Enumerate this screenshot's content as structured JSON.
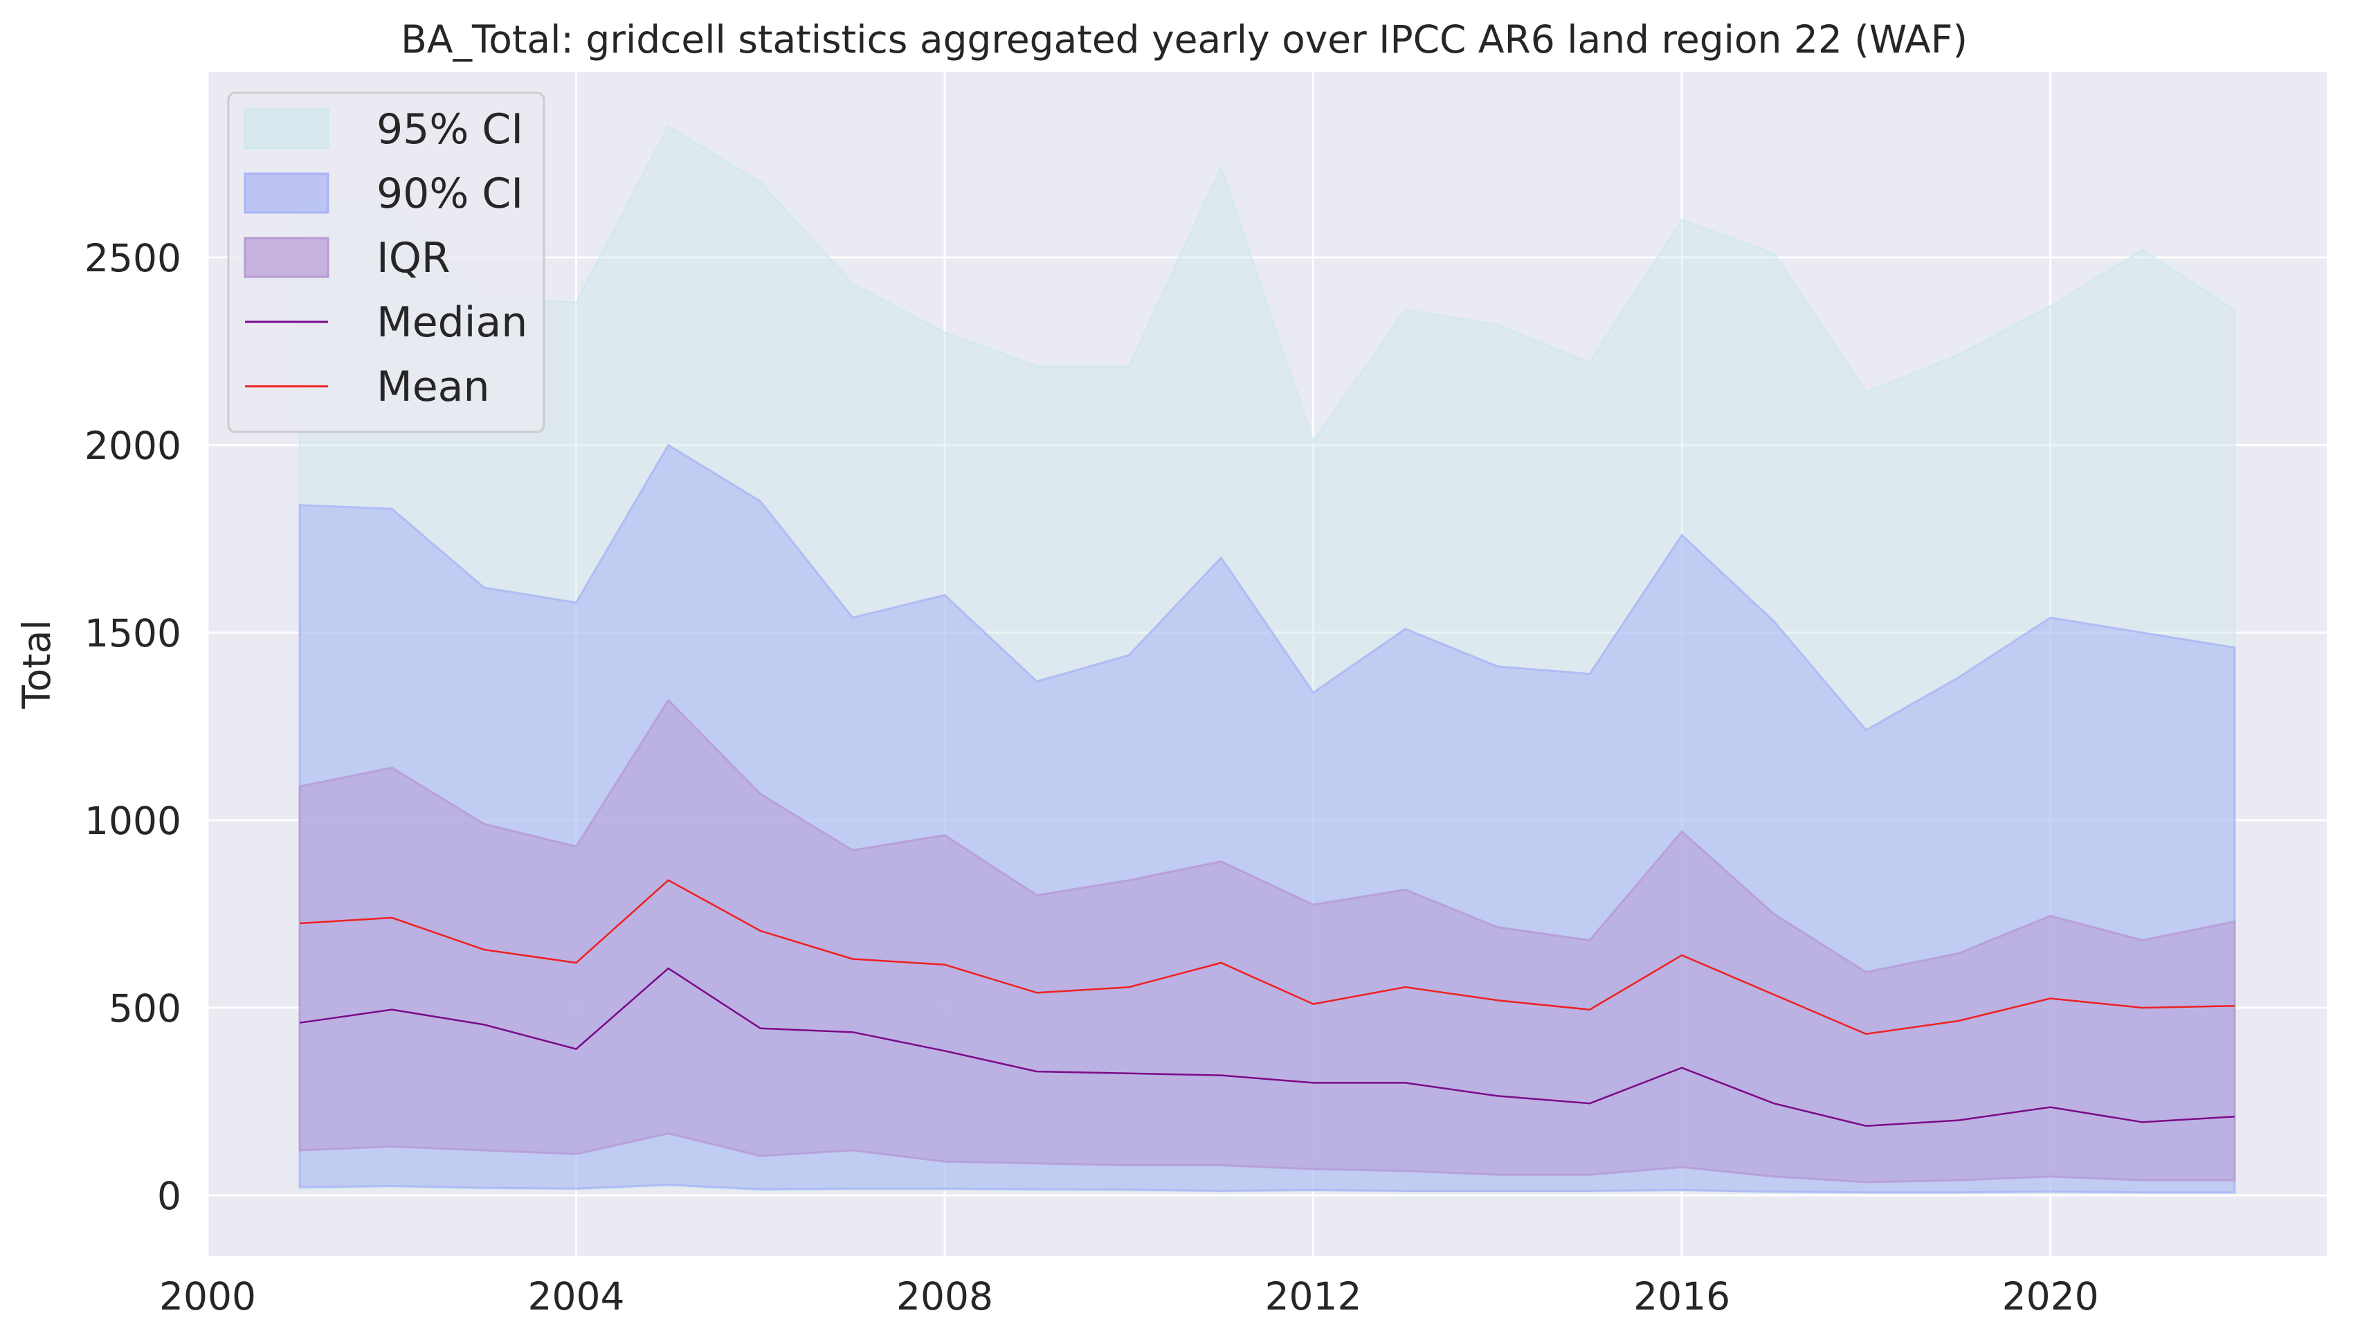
{
  "chart_data": {
    "type": "area",
    "title": "BA_Total: gridcell statistics aggregated yearly over IPCC AR6 land region 22 (WAF)",
    "xlabel": "",
    "ylabel": "Total",
    "xlim": [
      2000,
      2023
    ],
    "ylim": [
      -150,
      3000
    ],
    "x_ticks": [
      2000,
      2004,
      2008,
      2012,
      2016,
      2020
    ],
    "y_ticks": [
      0,
      500,
      1000,
      1500,
      2000,
      2500
    ],
    "grid": true,
    "legend_position": "top-left",
    "x": [
      2001,
      2002,
      2003,
      2004,
      2005,
      2006,
      2007,
      2008,
      2009,
      2010,
      2011,
      2012,
      2013,
      2014,
      2015,
      2016,
      2017,
      2018,
      2019,
      2020,
      2021,
      2022
    ],
    "bands": [
      {
        "name": "95% CI",
        "color": "#cfe8ec",
        "opacity": 0.45,
        "lower": [
          18,
          22,
          18,
          16,
          25,
          14,
          15,
          15,
          14,
          13,
          10,
          12,
          10,
          10,
          10,
          12,
          8,
          6,
          6,
          8,
          6,
          6
        ],
        "upper": [
          2650,
          2640,
          2390,
          2380,
          2850,
          2700,
          2430,
          2300,
          2210,
          2210,
          2740,
          2010,
          2360,
          2320,
          2220,
          2600,
          2510,
          2140,
          2240,
          2370,
          2520,
          2360
        ]
      },
      {
        "name": "90% CI",
        "color": "#aab4f5",
        "opacity": 0.55,
        "lower": [
          22,
          25,
          20,
          18,
          28,
          16,
          18,
          18,
          16,
          15,
          12,
          14,
          12,
          12,
          12,
          14,
          10,
          8,
          8,
          10,
          8,
          8
        ],
        "upper": [
          1840,
          1830,
          1620,
          1580,
          2000,
          1850,
          1540,
          1600,
          1370,
          1440,
          1700,
          1340,
          1510,
          1410,
          1390,
          1760,
          1530,
          1240,
          1380,
          1540,
          1500,
          1460
        ]
      },
      {
        "name": "IQR",
        "color": "#b79ad6",
        "opacity": 0.55,
        "lower": [
          120,
          130,
          120,
          110,
          165,
          105,
          120,
          90,
          85,
          80,
          80,
          70,
          65,
          55,
          55,
          75,
          50,
          35,
          40,
          50,
          40,
          40
        ],
        "upper": [
          1090,
          1140,
          990,
          930,
          1320,
          1070,
          920,
          960,
          800,
          840,
          890,
          775,
          815,
          715,
          680,
          970,
          750,
          595,
          645,
          745,
          680,
          730
        ]
      }
    ],
    "series": [
      {
        "name": "Median",
        "color": "#7b0a8a",
        "values": [
          460,
          495,
          455,
          390,
          605,
          445,
          435,
          385,
          330,
          325,
          320,
          300,
          300,
          265,
          245,
          340,
          245,
          185,
          200,
          235,
          195,
          210
        ]
      },
      {
        "name": "Mean",
        "color": "#ef2020",
        "values": [
          725,
          740,
          655,
          620,
          840,
          705,
          630,
          615,
          540,
          555,
          620,
          510,
          555,
          520,
          495,
          640,
          535,
          430,
          465,
          525,
          500,
          505
        ]
      }
    ],
    "legend": [
      {
        "label": "95% CI",
        "kind": "patch",
        "color": "#cfe8ec"
      },
      {
        "label": "90% CI",
        "kind": "patch",
        "color": "#aab4f5"
      },
      {
        "label": "IQR",
        "kind": "patch",
        "color": "#b79ad6"
      },
      {
        "label": "Median",
        "kind": "line",
        "color": "#7b0a8a"
      },
      {
        "label": "Mean",
        "kind": "line",
        "color": "#ef2020"
      }
    ]
  },
  "theme": {
    "plot_background": "#eaeaf2",
    "grid_color": "#ffffff"
  }
}
